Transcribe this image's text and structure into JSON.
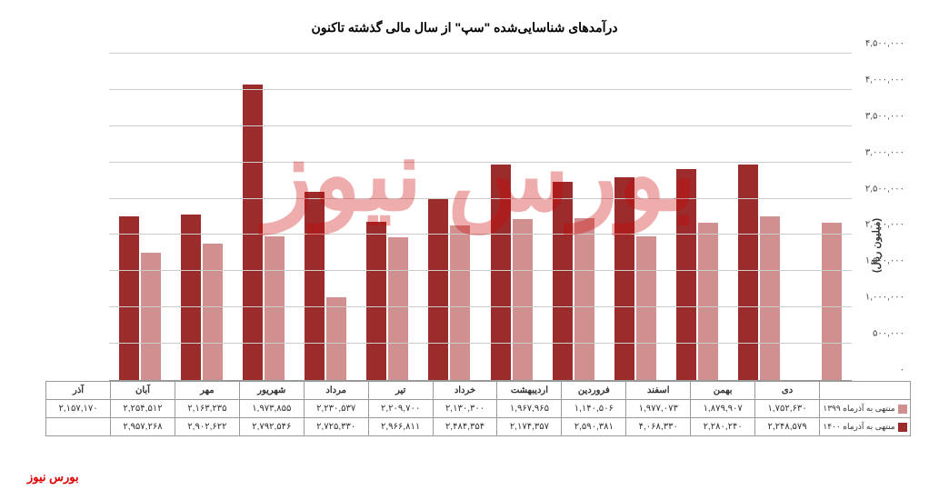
{
  "chart": {
    "type": "bar",
    "title": "درآمدهای شناسایی‌شده \"سپ\" از سال مالی گذشته تاکنون",
    "y_axis_title": "(میلیون ریال)",
    "ylim": [
      0,
      4500000
    ],
    "ytick_step": 500000,
    "ytick_labels": [
      "۰",
      "۵۰۰,۰۰۰",
      "۱,۰۰۰,۰۰۰",
      "۱,۵۰۰,۰۰۰",
      "۲,۰۰۰,۰۰۰",
      "۲,۵۰۰,۰۰۰",
      "۳,۰۰۰,۰۰۰",
      "۳,۵۰۰,۰۰۰",
      "۴,۰۰۰,۰۰۰",
      "۴,۵۰۰,۰۰۰"
    ],
    "grid_color": "#cccccc",
    "background_color": "#ffffff",
    "categories": [
      "دی",
      "بهمن",
      "اسفند",
      "فروردین",
      "اردیبهشت",
      "خرداد",
      "تیر",
      "مرداد",
      "شهریور",
      "مهر",
      "آبان",
      "آذر"
    ],
    "series": [
      {
        "name": "منتهی به آذرماه ۱۳۹۹",
        "color": "#d09090",
        "values": [
          1752630,
          1879907,
          1977073,
          1140506,
          1967965,
          2130300,
          2209700,
          2230537,
          1973855,
          2163235,
          2254512,
          2157170
        ],
        "labels": [
          "۱,۷۵۲,۶۳۰",
          "۱,۸۷۹,۹۰۷",
          "۱,۹۷۷,۰۷۳",
          "۱,۱۴۰,۵۰۶",
          "۱,۹۶۷,۹۶۵",
          "۲,۱۳۰,۳۰۰",
          "۲,۲۰۹,۷۰۰",
          "۲,۲۳۰,۵۳۷",
          "۱,۹۷۳,۸۵۵",
          "۲,۱۶۳,۲۳۵",
          "۲,۲۵۴,۵۱۲",
          "۲,۱۵۷,۱۷۰"
        ]
      },
      {
        "name": "منتهی به آذرماه ۱۴۰۰",
        "color": "#9c2b2b",
        "values": [
          2248579,
          2280240,
          4068330,
          2590381,
          2174357,
          2484354,
          2966811,
          2725330,
          2792546,
          2902622,
          2957268,
          null
        ],
        "labels": [
          "۲,۲۴۸,۵۷۹",
          "۲,۲۸۰,۲۴۰",
          "۴,۰۶۸,۳۳۰",
          "۲,۵۹۰,۳۸۱",
          "۲,۱۷۴,۳۵۷",
          "۲,۴۸۴,۳۵۴",
          "۲,۹۶۶,۸۱۱",
          "۲,۷۲۵,۳۳۰",
          "۲,۷۹۲,۵۴۶",
          "۲,۹۰۲,۶۲۲",
          "۲,۹۵۷,۲۶۸",
          ""
        ]
      }
    ],
    "credit": "بورس نیوز"
  }
}
